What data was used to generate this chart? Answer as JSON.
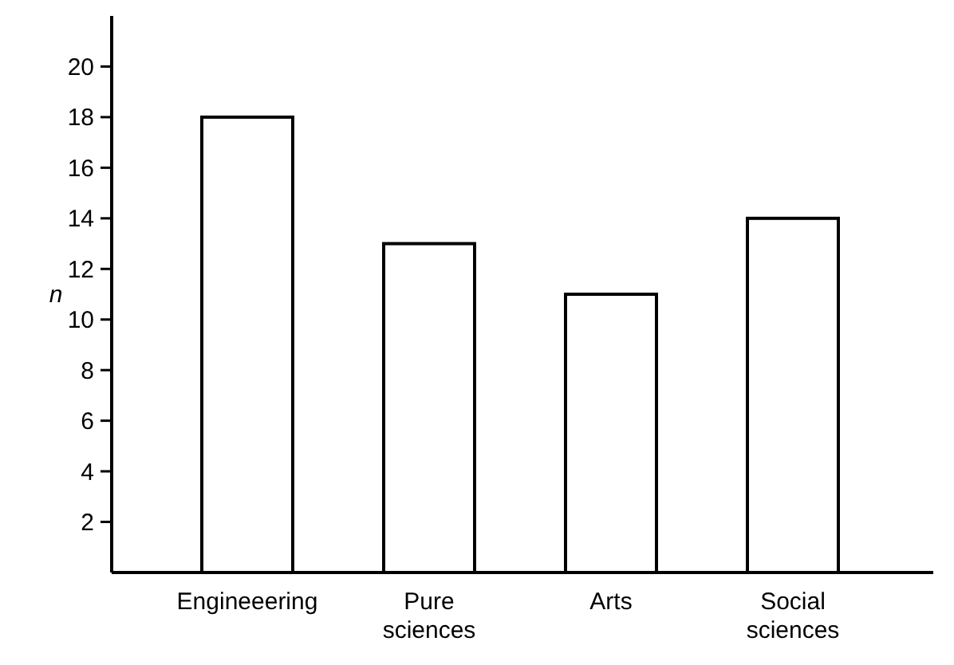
{
  "chart_data": {
    "type": "bar",
    "ylabel": "n",
    "categories": [
      "Engineeering",
      "Pure sciences",
      "Arts",
      "Social sciences"
    ],
    "values": [
      18,
      13,
      11,
      14
    ],
    "color": "#ffffff",
    "ylim": [
      0,
      22
    ],
    "yticks": [
      2,
      4,
      6,
      8,
      10,
      12,
      14,
      16,
      18,
      20
    ]
  }
}
